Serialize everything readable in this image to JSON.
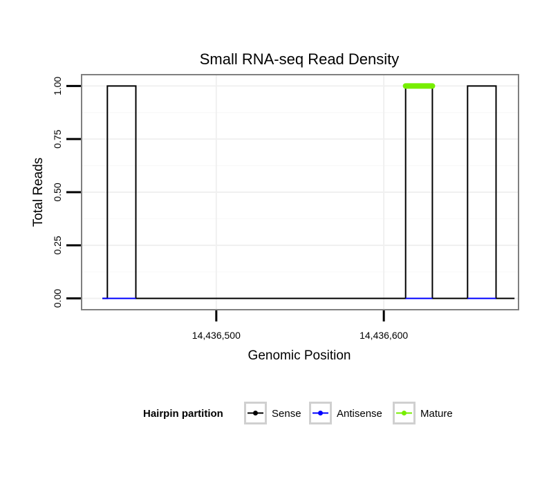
{
  "chart_data": {
    "type": "line",
    "title": "Small RNA-seq Read Density",
    "xlabel": "Genomic Position",
    "ylabel": "Total Reads",
    "xlim": [
      14436420,
      14436680
    ],
    "ylim": [
      -0.05,
      1.05
    ],
    "x_ticks": [
      14436500,
      14436600
    ],
    "x_tick_labels": [
      "14,436,500",
      "14,436,600"
    ],
    "y_ticks": [
      0,
      0.25,
      0.5,
      0.75,
      1
    ],
    "y_tick_labels": [
      "0.00",
      "0.25",
      "0.50",
      "0.75",
      "1.00"
    ],
    "grid": true,
    "legend": {
      "title": "Hairpin partition",
      "position": "bottom",
      "entries": [
        "Sense",
        "Antisense",
        "Mature"
      ]
    },
    "series": [
      {
        "name": "Sense",
        "color": "#000000",
        "x": [
          14436432,
          14436435,
          14436435,
          14436452,
          14436452,
          14436613,
          14436613,
          14436629,
          14436629,
          14436650,
          14436650,
          14436667,
          14436667,
          14436678
        ],
        "y": [
          0,
          0,
          1,
          1,
          0,
          0,
          1,
          1,
          0,
          0,
          1,
          1,
          0,
          0
        ]
      },
      {
        "name": "Antisense",
        "color": "#0000ff",
        "x": [
          14436432,
          14436452,
          14436613,
          14436629,
          14436650,
          14436667
        ],
        "y": [
          0,
          0,
          0,
          0,
          0,
          0
        ]
      },
      {
        "name": "Mature",
        "color": "#77ee00",
        "x": [
          14436613,
          14436629
        ],
        "y": [
          1,
          1
        ]
      }
    ]
  }
}
